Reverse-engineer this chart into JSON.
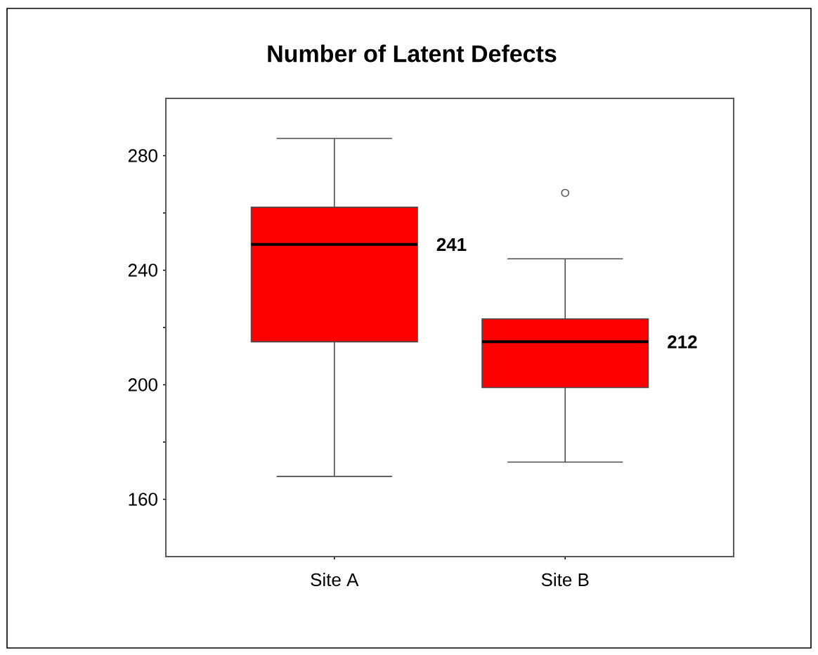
{
  "chart_data": {
    "type": "box",
    "title": "Number of Latent Defects",
    "categories": [
      "Site A",
      "Site B"
    ],
    "color": "#ff0000",
    "boxes": [
      {
        "low": 168,
        "q1": 215,
        "median": 249,
        "q3": 262,
        "high": 286
      },
      {
        "low": 173,
        "q1": 199,
        "median": 215,
        "q3": 223,
        "high": 244,
        "outliers": [
          267
        ]
      }
    ],
    "ylim": [
      140,
      300
    ],
    "yticks": [
      160,
      200,
      240,
      280
    ],
    "annotations": [
      "241",
      "212"
    ]
  }
}
